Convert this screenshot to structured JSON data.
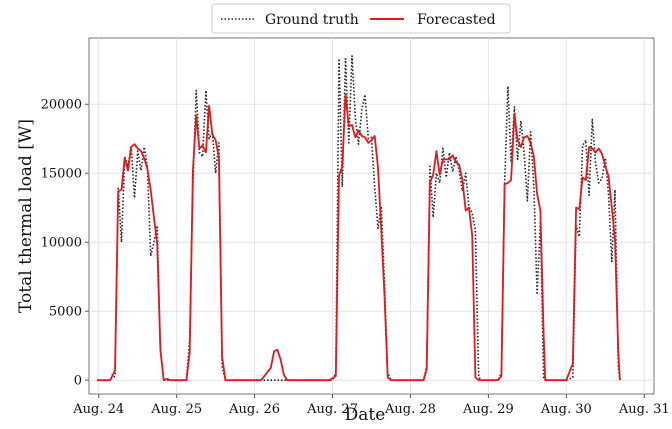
{
  "chart_data": {
    "type": "line",
    "xlabel": "Date",
    "ylabel": "Total thermal load [W]",
    "x_unit": "hours since the Aug. 24 tick",
    "xlim": [
      -3,
      171
    ],
    "ylim": [
      -1000,
      24800
    ],
    "x_ticks": [
      {
        "value": 0,
        "label": "Aug. 24"
      },
      {
        "value": 24,
        "label": "Aug. 25"
      },
      {
        "value": 48,
        "label": "Aug. 26"
      },
      {
        "value": 72,
        "label": "Aug. 27"
      },
      {
        "value": 96,
        "label": "Aug. 28"
      },
      {
        "value": 120,
        "label": "Aug. 29"
      },
      {
        "value": 144,
        "label": "Aug. 30"
      },
      {
        "value": 168,
        "label": "Aug. 31"
      }
    ],
    "y_ticks": [
      0,
      5000,
      10000,
      15000,
      20000
    ],
    "grid": true,
    "legend_position": "top-center",
    "series": [
      {
        "name": "Ground truth",
        "color": "#222222",
        "style": "dotted",
        "points": [
          [
            -0.5,
            0
          ],
          [
            3,
            0
          ],
          [
            5,
            300
          ],
          [
            6,
            13900
          ],
          [
            7,
            10000
          ],
          [
            8,
            16200
          ],
          [
            9,
            15500
          ],
          [
            10,
            17000
          ],
          [
            11,
            13200
          ],
          [
            12,
            16600
          ],
          [
            13,
            15200
          ],
          [
            14,
            16900
          ],
          [
            15,
            15500
          ],
          [
            16,
            9000
          ],
          [
            17,
            10000
          ],
          [
            18,
            11200
          ],
          [
            19,
            2200
          ],
          [
            20,
            0
          ],
          [
            22,
            0
          ],
          [
            24,
            0
          ],
          [
            27,
            0
          ],
          [
            28,
            3000
          ],
          [
            29,
            14000
          ],
          [
            30,
            21000
          ],
          [
            31,
            16500
          ],
          [
            32,
            16200
          ],
          [
            33,
            21000
          ],
          [
            34,
            17500
          ],
          [
            35,
            18000
          ],
          [
            36,
            15000
          ],
          [
            37,
            17200
          ],
          [
            38,
            1000
          ],
          [
            39,
            0
          ],
          [
            42,
            0
          ],
          [
            48,
            0
          ],
          [
            72,
            0
          ],
          [
            73,
            500
          ],
          [
            74,
            23300
          ],
          [
            75,
            14000
          ],
          [
            76,
            23300
          ],
          [
            77,
            17200
          ],
          [
            78,
            23500
          ],
          [
            79,
            19000
          ],
          [
            80,
            17100
          ],
          [
            81,
            19600
          ],
          [
            82,
            20700
          ],
          [
            83,
            17500
          ],
          [
            84,
            17600
          ],
          [
            85,
            14000
          ],
          [
            86,
            11000
          ],
          [
            87,
            12600
          ],
          [
            88,
            7000
          ],
          [
            89,
            500
          ],
          [
            90,
            0
          ],
          [
            95,
            0
          ],
          [
            96,
            0
          ],
          [
            100,
            0
          ],
          [
            101,
            1000
          ],
          [
            102,
            15500
          ],
          [
            103,
            11800
          ],
          [
            104,
            15000
          ],
          [
            105,
            14300
          ],
          [
            106,
            16800
          ],
          [
            107,
            14700
          ],
          [
            108,
            16500
          ],
          [
            109,
            15100
          ],
          [
            110,
            16200
          ],
          [
            111,
            15200
          ],
          [
            112,
            13700
          ],
          [
            113,
            15000
          ],
          [
            114,
            12600
          ],
          [
            115,
            12100
          ],
          [
            116,
            10900
          ],
          [
            117,
            200
          ],
          [
            118,
            0
          ],
          [
            120,
            0
          ],
          [
            123,
            0
          ],
          [
            124,
            500
          ],
          [
            125,
            14200
          ],
          [
            126,
            21300
          ],
          [
            127,
            15800
          ],
          [
            128,
            19800
          ],
          [
            129,
            16000
          ],
          [
            130,
            18800
          ],
          [
            131,
            16500
          ],
          [
            132,
            13000
          ],
          [
            133,
            18000
          ],
          [
            134,
            14000
          ],
          [
            135,
            6200
          ],
          [
            136,
            11500
          ],
          [
            137,
            200
          ],
          [
            138,
            0
          ],
          [
            140,
            0
          ],
          [
            144,
            0
          ],
          [
            146,
            200
          ],
          [
            147,
            11200
          ],
          [
            148,
            10400
          ],
          [
            149,
            17000
          ],
          [
            150,
            17400
          ],
          [
            151,
            13400
          ],
          [
            152,
            18900
          ],
          [
            153,
            15700
          ],
          [
            154,
            14300
          ],
          [
            155,
            14600
          ],
          [
            156,
            16100
          ],
          [
            157,
            13500
          ],
          [
            158,
            8600
          ],
          [
            159,
            13800
          ],
          [
            160,
            1000
          ],
          [
            160.5,
            0
          ]
        ]
      },
      {
        "name": "Forecasted",
        "color": "#e8161b",
        "style": "solid",
        "points": [
          [
            -0.5,
            0
          ],
          [
            3.5,
            0
          ],
          [
            5,
            700
          ],
          [
            6,
            13700
          ],
          [
            7,
            13800
          ],
          [
            8,
            16100
          ],
          [
            9,
            15200
          ],
          [
            10,
            16900
          ],
          [
            11,
            17100
          ],
          [
            12,
            16800
          ],
          [
            13,
            16600
          ],
          [
            14,
            16100
          ],
          [
            15,
            15300
          ],
          [
            16,
            13800
          ],
          [
            17,
            11800
          ],
          [
            18,
            9900
          ],
          [
            19,
            2200
          ],
          [
            20,
            0
          ],
          [
            21,
            100
          ],
          [
            22,
            0
          ],
          [
            24,
            0
          ],
          [
            27,
            0
          ],
          [
            28,
            2000
          ],
          [
            29,
            15200
          ],
          [
            30,
            19200
          ],
          [
            31,
            16800
          ],
          [
            32,
            17000
          ],
          [
            33,
            16500
          ],
          [
            34,
            19900
          ],
          [
            35,
            17800
          ],
          [
            36,
            17400
          ],
          [
            37,
            16100
          ],
          [
            38,
            1700
          ],
          [
            39,
            0
          ],
          [
            45,
            0
          ],
          [
            50,
            0
          ],
          [
            53,
            900
          ],
          [
            54,
            2100
          ],
          [
            55,
            2200
          ],
          [
            56,
            1500
          ],
          [
            57,
            400
          ],
          [
            58,
            0
          ],
          [
            60,
            0
          ],
          [
            71,
            0
          ],
          [
            73,
            300
          ],
          [
            74,
            14800
          ],
          [
            75,
            15500
          ],
          [
            76,
            20700
          ],
          [
            77,
            18400
          ],
          [
            78,
            18500
          ],
          [
            79,
            17600
          ],
          [
            80,
            18100
          ],
          [
            81,
            17700
          ],
          [
            82,
            17600
          ],
          [
            83,
            17200
          ],
          [
            84,
            17400
          ],
          [
            85,
            17700
          ],
          [
            86,
            15400
          ],
          [
            87,
            11000
          ],
          [
            88,
            6100
          ],
          [
            89,
            200
          ],
          [
            90,
            0
          ],
          [
            96,
            0
          ],
          [
            99,
            0
          ],
          [
            100,
            0
          ],
          [
            101,
            800
          ],
          [
            102,
            14300
          ],
          [
            103,
            14900
          ],
          [
            104,
            16600
          ],
          [
            105,
            14900
          ],
          [
            106,
            16000
          ],
          [
            107,
            16000
          ],
          [
            108,
            16000
          ],
          [
            109,
            16300
          ],
          [
            110,
            15800
          ],
          [
            111,
            15600
          ],
          [
            112,
            14500
          ],
          [
            113,
            12300
          ],
          [
            114,
            12500
          ],
          [
            115,
            10500
          ],
          [
            116,
            200
          ],
          [
            117,
            0
          ],
          [
            120,
            0
          ],
          [
            123,
            0
          ],
          [
            124,
            300
          ],
          [
            125,
            14200
          ],
          [
            126,
            14300
          ],
          [
            127,
            14500
          ],
          [
            128,
            19300
          ],
          [
            129,
            17400
          ],
          [
            130,
            16900
          ],
          [
            131,
            17600
          ],
          [
            132,
            17700
          ],
          [
            133,
            17200
          ],
          [
            134,
            16200
          ],
          [
            135,
            13500
          ],
          [
            136,
            12300
          ],
          [
            137,
            3400
          ],
          [
            137.5,
            0
          ],
          [
            141,
            0
          ],
          [
            144,
            0
          ],
          [
            146,
            1200
          ],
          [
            147,
            12500
          ],
          [
            148,
            12400
          ],
          [
            149,
            14700
          ],
          [
            150,
            14500
          ],
          [
            151,
            16900
          ],
          [
            152,
            16800
          ],
          [
            153,
            16500
          ],
          [
            154,
            16800
          ],
          [
            155,
            16400
          ],
          [
            156,
            15500
          ],
          [
            157,
            14800
          ],
          [
            158,
            12500
          ],
          [
            159,
            10200
          ],
          [
            160,
            2000
          ],
          [
            160.5,
            0
          ]
        ]
      }
    ]
  }
}
